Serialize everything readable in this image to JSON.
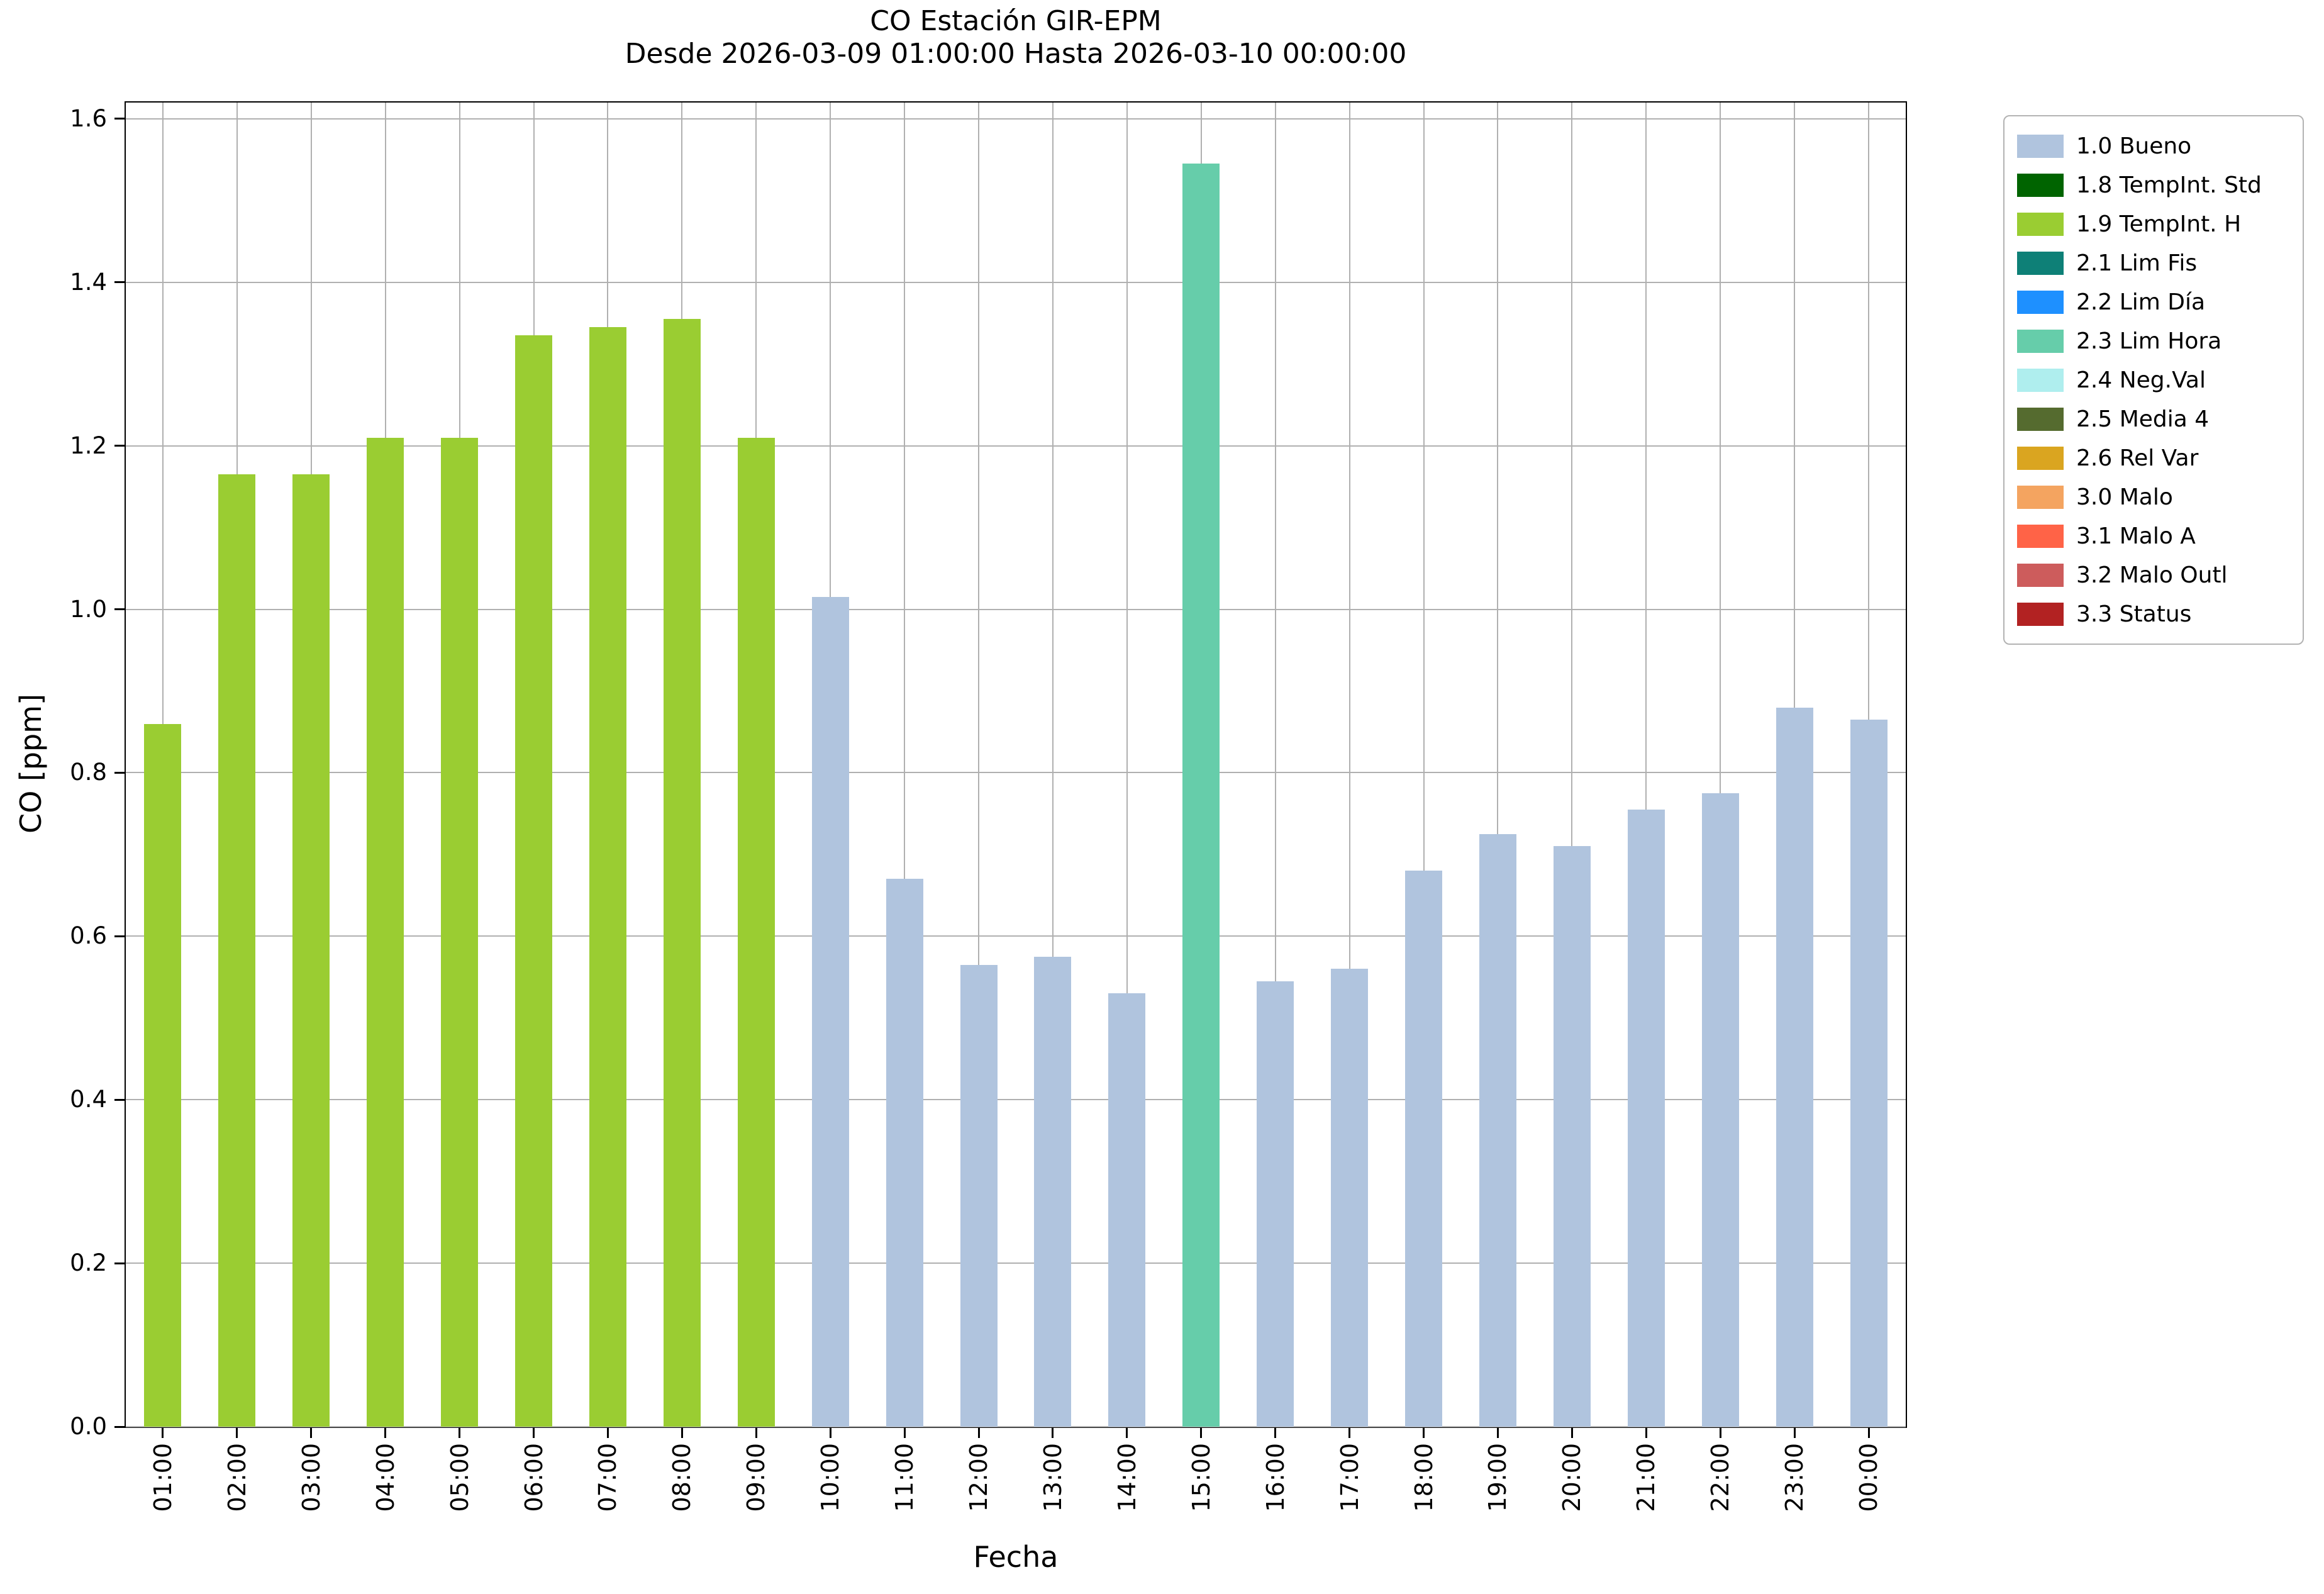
{
  "chart_data": {
    "type": "bar",
    "title": "CO Estación GIR-EPM",
    "subtitle": "Desde 2026-03-09 01:00:00 Hasta 2026-03-10 00:00:00",
    "xlabel": "Fecha",
    "ylabel": "CO [ppm]",
    "ylim": [
      0.0,
      1.62
    ],
    "ytick_labels": [
      "0.0",
      "0.2",
      "0.4",
      "0.6",
      "0.8",
      "1.0",
      "1.2",
      "1.4",
      "1.6"
    ],
    "grid": true,
    "legend_position": "outside upper right",
    "categories": [
      "01:00",
      "02:00",
      "03:00",
      "04:00",
      "05:00",
      "06:00",
      "07:00",
      "08:00",
      "09:00",
      "10:00",
      "11:00",
      "12:00",
      "13:00",
      "14:00",
      "15:00",
      "16:00",
      "17:00",
      "18:00",
      "19:00",
      "20:00",
      "21:00",
      "22:00",
      "23:00",
      "00:00"
    ],
    "values": [
      0.86,
      1.165,
      1.165,
      1.21,
      1.21,
      1.335,
      1.345,
      1.355,
      1.21,
      1.015,
      0.67,
      0.565,
      0.575,
      0.53,
      1.545,
      0.545,
      0.56,
      0.68,
      0.725,
      0.71,
      0.755,
      0.775,
      0.88,
      0.865
    ],
    "bar_status": [
      "1.9 TempInt. H",
      "1.9 TempInt. H",
      "1.9 TempInt. H",
      "1.9 TempInt. H",
      "1.9 TempInt. H",
      "1.9 TempInt. H",
      "1.9 TempInt. H",
      "1.9 TempInt. H",
      "1.9 TempInt. H",
      "1.0 Bueno",
      "1.0 Bueno",
      "1.0 Bueno",
      "1.0 Bueno",
      "1.0 Bueno",
      "2.3 Lim Hora",
      "1.0 Bueno",
      "1.0 Bueno",
      "1.0 Bueno",
      "1.0 Bueno",
      "1.0 Bueno",
      "1.0 Bueno",
      "1.0 Bueno",
      "1.0 Bueno",
      "1.0 Bueno"
    ],
    "legend": [
      {
        "label": "1.0 Bueno",
        "color": "#B0C4DE"
      },
      {
        "label": "1.8 TempInt. Std",
        "color": "#006400"
      },
      {
        "label": "1.9 TempInt. H",
        "color": "#9ACD32"
      },
      {
        "label": "2.1 Lim Fis",
        "color": "#0E8077"
      },
      {
        "label": "2.2 Lim Día",
        "color": "#1E90FF"
      },
      {
        "label": "2.3 Lim Hora",
        "color": "#66CDAA"
      },
      {
        "label": "2.4 Neg.Val",
        "color": "#AFEEEE"
      },
      {
        "label": "2.5 Media 4",
        "color": "#556B2F"
      },
      {
        "label": "2.6 Rel Var",
        "color": "#DAA520"
      },
      {
        "label": "3.0 Malo",
        "color": "#F4A460"
      },
      {
        "label": "3.1 Malo A",
        "color": "#FF6347"
      },
      {
        "label": "3.2 Malo Outl",
        "color": "#CD5C5C"
      },
      {
        "label": "3.3 Status",
        "color": "#B22222"
      }
    ]
  }
}
